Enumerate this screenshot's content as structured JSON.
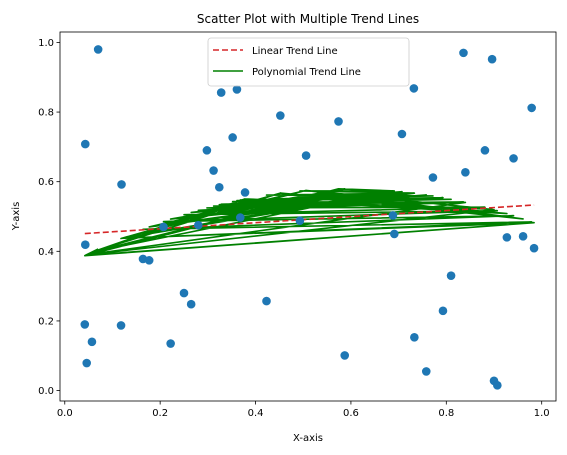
{
  "chart_data": {
    "type": "scatter",
    "title": "Scatter Plot with Multiple Trend Lines",
    "xlabel": "X-axis",
    "ylabel": "Y-axis",
    "xlim": [
      -0.01,
      1.03
    ],
    "ylim": [
      -0.03,
      1.03
    ],
    "xticks": [
      "0.0",
      "0.2",
      "0.4",
      "0.6",
      "0.8",
      "1.0"
    ],
    "xtick_values": [
      0.0,
      0.2,
      0.4,
      0.6,
      0.8,
      1.0
    ],
    "yticks": [
      "0.0",
      "0.2",
      "0.4",
      "0.6",
      "0.8",
      "1.0"
    ],
    "ytick_values": [
      0.0,
      0.2,
      0.4,
      0.6,
      0.8,
      1.0
    ],
    "grid": false,
    "legend_position": "top-center",
    "colors": {
      "points": "#1f77b4",
      "linear": "#d62728",
      "poly": "#008000"
    },
    "points": [
      {
        "x": 0.07,
        "y": 0.98
      },
      {
        "x": 0.043,
        "y": 0.708
      },
      {
        "x": 0.043,
        "y": 0.419
      },
      {
        "x": 0.042,
        "y": 0.19
      },
      {
        "x": 0.057,
        "y": 0.14
      },
      {
        "x": 0.046,
        "y": 0.079
      },
      {
        "x": 0.119,
        "y": 0.592
      },
      {
        "x": 0.118,
        "y": 0.187
      },
      {
        "x": 0.164,
        "y": 0.378
      },
      {
        "x": 0.177,
        "y": 0.374
      },
      {
        "x": 0.207,
        "y": 0.47
      },
      {
        "x": 0.222,
        "y": 0.135
      },
      {
        "x": 0.25,
        "y": 0.28
      },
      {
        "x": 0.265,
        "y": 0.248
      },
      {
        "x": 0.28,
        "y": 0.475
      },
      {
        "x": 0.298,
        "y": 0.69
      },
      {
        "x": 0.312,
        "y": 0.632
      },
      {
        "x": 0.324,
        "y": 0.584
      },
      {
        "x": 0.328,
        "y": 0.856
      },
      {
        "x": 0.352,
        "y": 0.727
      },
      {
        "x": 0.361,
        "y": 0.865
      },
      {
        "x": 0.368,
        "y": 0.497
      },
      {
        "x": 0.378,
        "y": 0.569
      },
      {
        "x": 0.423,
        "y": 0.257
      },
      {
        "x": 0.452,
        "y": 0.79
      },
      {
        "x": 0.493,
        "y": 0.488
      },
      {
        "x": 0.506,
        "y": 0.675
      },
      {
        "x": 0.574,
        "y": 0.773
      },
      {
        "x": 0.587,
        "y": 0.101
      },
      {
        "x": 0.688,
        "y": 0.503
      },
      {
        "x": 0.691,
        "y": 0.45
      },
      {
        "x": 0.707,
        "y": 0.737
      },
      {
        "x": 0.732,
        "y": 0.868
      },
      {
        "x": 0.733,
        "y": 0.153
      },
      {
        "x": 0.758,
        "y": 0.055
      },
      {
        "x": 0.772,
        "y": 0.612
      },
      {
        "x": 0.793,
        "y": 0.229
      },
      {
        "x": 0.81,
        "y": 0.33
      },
      {
        "x": 0.836,
        "y": 0.97
      },
      {
        "x": 0.84,
        "y": 0.627
      },
      {
        "x": 0.881,
        "y": 0.69
      },
      {
        "x": 0.896,
        "y": 0.952
      },
      {
        "x": 0.9,
        "y": 0.028
      },
      {
        "x": 0.907,
        "y": 0.015
      },
      {
        "x": 0.927,
        "y": 0.44
      },
      {
        "x": 0.941,
        "y": 0.667
      },
      {
        "x": 0.961,
        "y": 0.443
      },
      {
        "x": 0.979,
        "y": 0.812
      },
      {
        "x": 0.984,
        "y": 0.409
      }
    ],
    "series": [
      {
        "name": "Linear Trend Line",
        "style": "dashed",
        "x": [
          0.042,
          0.984
        ],
        "y": [
          0.451,
          0.533
        ]
      },
      {
        "name": "Polynomial Trend Line",
        "style": "solid",
        "poly_coefficients": [
          -0.635,
          0.752,
          0.357
        ],
        "x_order": [
          0.07,
          0.043,
          0.984,
          0.119,
          0.979,
          0.164,
          0.941,
          0.207,
          0.907,
          0.25,
          0.881,
          0.298,
          0.836,
          0.328,
          0.81,
          0.368,
          0.772,
          0.423,
          0.732,
          0.493,
          0.691,
          0.574,
          0.042,
          0.587,
          0.057,
          0.688,
          0.118,
          0.707,
          0.177,
          0.733,
          0.222,
          0.758,
          0.265,
          0.793,
          0.312,
          0.84,
          0.352,
          0.896,
          0.378,
          0.927,
          0.452,
          0.961,
          0.506,
          0.9,
          0.046,
          0.84,
          0.28,
          0.793,
          0.361,
          0.733,
          0.324,
          0.707,
          0.265,
          0.688,
          0.222,
          0.587,
          0.177,
          0.506,
          0.118,
          0.452,
          0.057,
          0.378,
          0.042,
          0.984
        ]
      }
    ]
  }
}
